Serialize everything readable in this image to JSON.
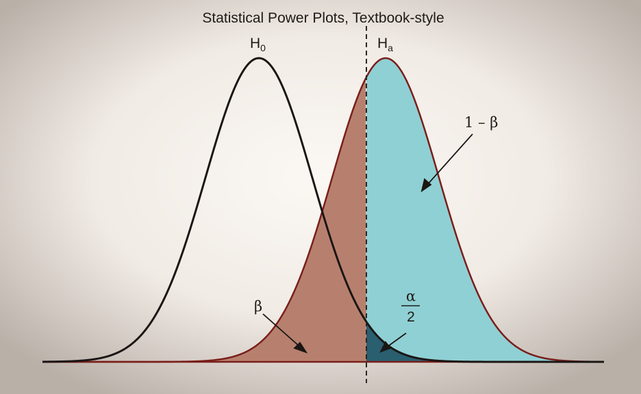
{
  "diagram": {
    "title": "Statistical Power Plots, Textbook-style",
    "null_hypothesis": {
      "base": "H",
      "subscript": "0"
    },
    "alt_hypothesis": {
      "base": "H",
      "subscript": "a"
    },
    "labels": {
      "beta": "β",
      "power": "1 – β",
      "alpha_numerator": "α",
      "alpha_denominator": "2"
    },
    "colors": {
      "background_center": "#fbf8f4",
      "background_edge": "#b9b0a8",
      "null_curve": "#1a1614",
      "alt_curve": "#7a1e1a",
      "beta_fill": "#b7806e",
      "power_fill": "#8fd0d4",
      "alpha_fill": "#2a5f70",
      "critical_line": "#2a2622"
    }
  }
}
